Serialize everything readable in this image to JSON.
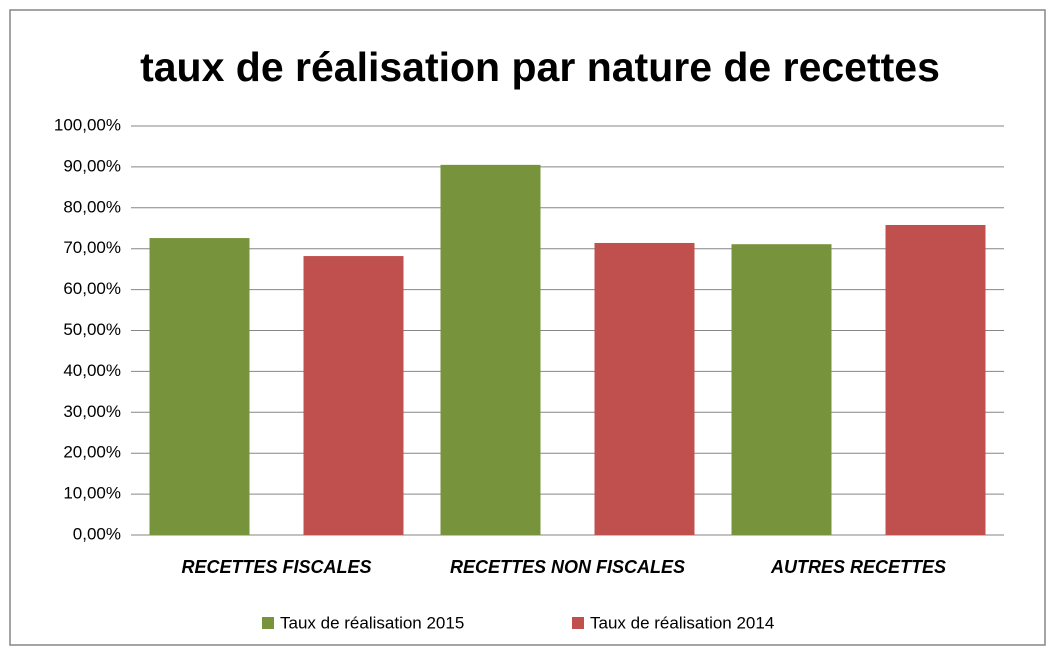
{
  "chart_data": {
    "type": "bar",
    "title": "taux de réalisation par nature de recettes",
    "categories": [
      "RECETTES FISCALES",
      "RECETTES NON FISCALES",
      "AUTRES RECETTES"
    ],
    "series": [
      {
        "name": "Taux de réalisation 2015",
        "color": "#77933c",
        "values": [
          72.6,
          90.5,
          71.1
        ]
      },
      {
        "name": "Taux de réalisation 2014",
        "color": "#c0504d",
        "values": [
          68.2,
          71.4,
          75.8
        ]
      }
    ],
    "ylim": [
      0,
      100
    ],
    "yticks": [
      {
        "value": 0,
        "label": "0,00%"
      },
      {
        "value": 10,
        "label": "10,00%"
      },
      {
        "value": 20,
        "label": "20,00%"
      },
      {
        "value": 30,
        "label": "30,00%"
      },
      {
        "value": 40,
        "label": "40,00%"
      },
      {
        "value": 50,
        "label": "50,00%"
      },
      {
        "value": 60,
        "label": "60,00%"
      },
      {
        "value": 70,
        "label": "70,00%"
      },
      {
        "value": 80,
        "label": "80,00%"
      },
      {
        "value": 90,
        "label": "90,00%"
      },
      {
        "value": 100,
        "label": "100,00%"
      }
    ],
    "grid": true,
    "legend": "bottom"
  }
}
